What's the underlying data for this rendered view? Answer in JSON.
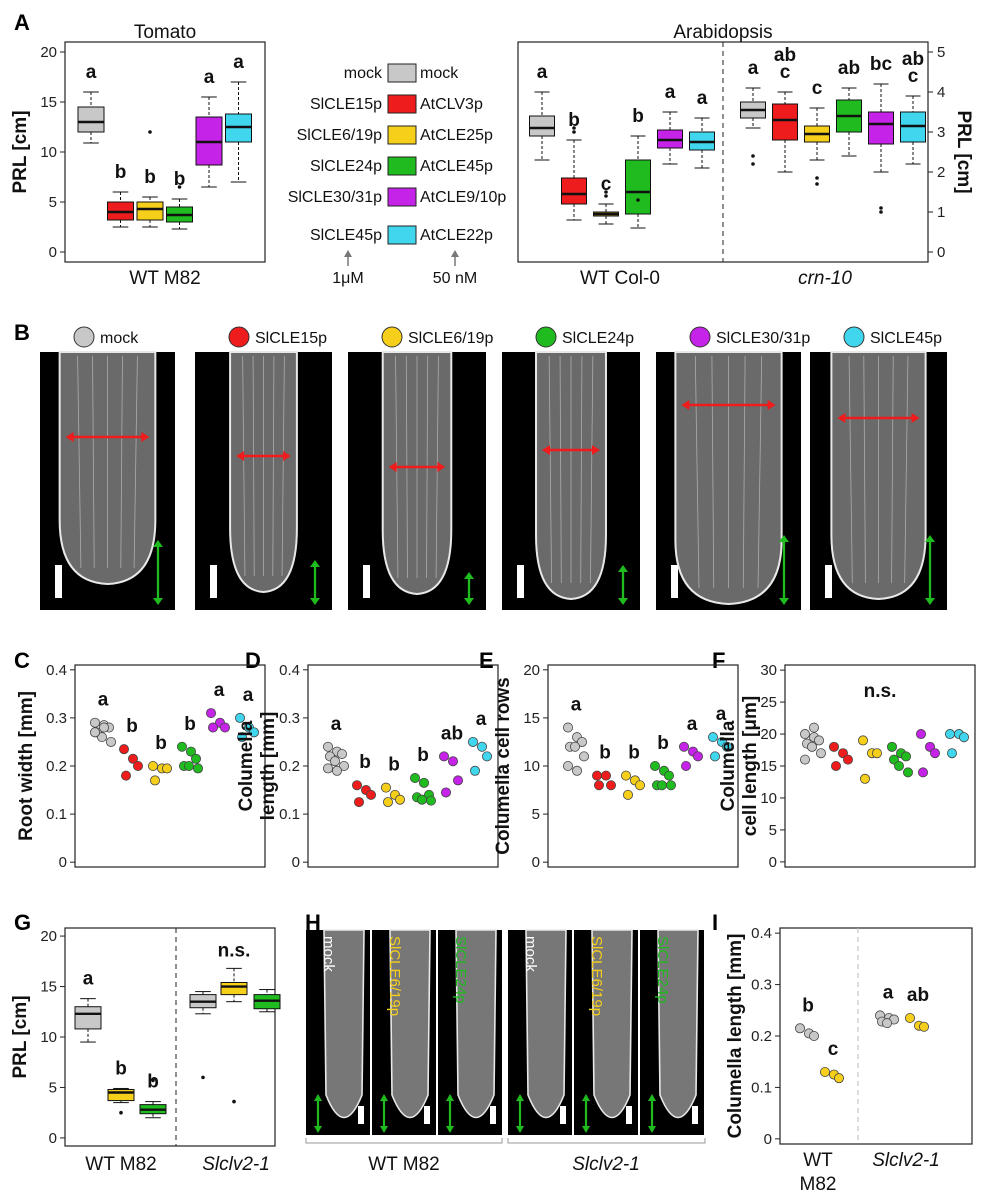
{
  "colors": {
    "mock": "#c8c8c8",
    "c15": "#ee1c1c",
    "c6": "#f6cf1b",
    "c24": "#1fbb1f",
    "c30": "#c523e8",
    "c45": "#3fd6ee"
  },
  "panel_labels": [
    "A",
    "B",
    "C",
    "D",
    "E",
    "F",
    "G",
    "H",
    "I"
  ],
  "legend": {
    "tomato": [
      "mock",
      "SlCLE15p",
      "SlCLE6/19p",
      "SlCLE24p",
      "SlCLE30/31p",
      "SlCLE45p"
    ],
    "arabidopsis": [
      "mock",
      "AtCLV3p",
      "AtCLE25p",
      "AtCLE45p",
      "AtCLE9/10p",
      "AtCLE22p"
    ],
    "conc_tomato": "1μM",
    "conc_arab": "50 nM"
  },
  "panel_b_labels": [
    "mock",
    "SlCLE15p",
    "SlCLE6/19p",
    "SlCLE24p",
    "SlCLE30/31p",
    "SlCLE45p"
  ],
  "panel_h": {
    "labels": [
      "mock",
      "SlCLE6/19p",
      "SlCLE24p",
      "mock",
      "SlCLE6/19p",
      "SlCLE24p"
    ],
    "groups": [
      "WT M82",
      "Slclv2-1"
    ]
  },
  "chart_data": [
    {
      "id": "A-tomato",
      "type": "box",
      "title": "Tomato",
      "ylabel": "PRL [cm]",
      "xlabel": "WT M82",
      "ylim": [
        -1,
        21
      ],
      "yticks": [
        0,
        5,
        10,
        15,
        20
      ],
      "categories": [
        "mock",
        "SlCLE15p",
        "SlCLE6/19p",
        "SlCLE24p",
        "SlCLE30/31p",
        "SlCLE45p"
      ],
      "boxes": [
        {
          "lo": 10.9,
          "q1": 12,
          "med": 13,
          "q3": 14.5,
          "hi": 16,
          "out": [],
          "sig": "a"
        },
        {
          "lo": 2.5,
          "q1": 3.2,
          "med": 4,
          "q3": 5,
          "hi": 6,
          "out": [],
          "sig": "b"
        },
        {
          "lo": 2.5,
          "q1": 3.2,
          "med": 4.3,
          "q3": 5,
          "hi": 5.5,
          "out": [
            12
          ],
          "sig": "b"
        },
        {
          "lo": 2.3,
          "q1": 3,
          "med": 3.7,
          "q3": 4.5,
          "hi": 5.3,
          "out": [
            6.5
          ],
          "sig": "b"
        },
        {
          "lo": 6.5,
          "q1": 8.7,
          "med": 11,
          "q3": 13.5,
          "hi": 15.5,
          "out": [],
          "sig": "a"
        },
        {
          "lo": 7,
          "q1": 11,
          "med": 12.5,
          "q3": 13.8,
          "hi": 17,
          "out": [],
          "sig": "a"
        }
      ]
    },
    {
      "id": "A-arabidopsis",
      "type": "box",
      "title": "Arabidopsis",
      "ylabel": "PRL [cm]",
      "ylim": [
        -0.25,
        5.25
      ],
      "yticks": [
        0,
        1,
        2,
        3,
        4,
        5
      ],
      "groups": [
        "WT Col-0",
        "crn-10"
      ],
      "categories": [
        "mock",
        "AtCLV3p",
        "AtCLE25p",
        "AtCLE45p",
        "AtCLE9/10p",
        "AtCLE22p"
      ],
      "boxes_wt": [
        {
          "lo": 2.3,
          "q1": 2.9,
          "med": 3.1,
          "q3": 3.4,
          "hi": 4,
          "out": [],
          "sig": "a"
        },
        {
          "lo": 0.8,
          "q1": 1.2,
          "med": 1.45,
          "q3": 1.85,
          "hi": 2.8,
          "out": [
            3,
            3.1
          ],
          "sig": "b"
        },
        {
          "lo": 0.7,
          "q1": 0.9,
          "med": 0.95,
          "q3": 1,
          "hi": 1.2,
          "out": [
            1.4,
            1.5
          ],
          "sig": "c"
        },
        {
          "lo": 0.6,
          "q1": 0.95,
          "med": 1.5,
          "q3": 2.3,
          "hi": 2.9,
          "out": [
            1.3
          ],
          "sig": "b"
        },
        {
          "lo": 2.2,
          "q1": 2.6,
          "med": 2.8,
          "q3": 3.05,
          "hi": 3.5,
          "out": [],
          "sig": "a"
        },
        {
          "lo": 2.1,
          "q1": 2.55,
          "med": 2.75,
          "q3": 3,
          "hi": 3.35,
          "out": [],
          "sig": "a"
        }
      ],
      "boxes_crn": [
        {
          "lo": 3.1,
          "q1": 3.35,
          "med": 3.55,
          "q3": 3.75,
          "hi": 4.1,
          "out": [
            2.4,
            2.2
          ],
          "sig": "a"
        },
        {
          "lo": 2,
          "q1": 2.8,
          "med": 3.3,
          "q3": 3.7,
          "hi": 4,
          "out": [],
          "sig": "ab c"
        },
        {
          "lo": 2.3,
          "q1": 2.75,
          "med": 2.95,
          "q3": 3.15,
          "hi": 3.6,
          "out": [
            1.85,
            1.7
          ],
          "sig": "c"
        },
        {
          "lo": 2.4,
          "q1": 3,
          "med": 3.4,
          "q3": 3.8,
          "hi": 4.1,
          "out": [],
          "sig": "ab"
        },
        {
          "lo": 2,
          "q1": 2.7,
          "med": 3.2,
          "q3": 3.5,
          "hi": 4.2,
          "out": [
            1.1,
            1
          ],
          "sig": "bc"
        },
        {
          "lo": 2.2,
          "q1": 2.75,
          "med": 3.15,
          "q3": 3.5,
          "hi": 3.9,
          "out": [],
          "sig": "ab c"
        }
      ]
    },
    {
      "id": "C",
      "type": "scatter",
      "ylabel": "Root width [mm]",
      "ylim": [
        -0.01,
        0.41
      ],
      "yticks": [
        0,
        0.1,
        0.2,
        0.3,
        0.4
      ],
      "series": [
        {
          "values": [
            0.29,
            0.285,
            0.28,
            0.27,
            0.26,
            0.25,
            0.27,
            0.28
          ],
          "sig": "a"
        },
        {
          "values": [
            0.235,
            0.215,
            0.2,
            0.18
          ],
          "sig": "b"
        },
        {
          "values": [
            0.2,
            0.195,
            0.195,
            0.17
          ],
          "sig": "b"
        },
        {
          "values": [
            0.24,
            0.23,
            0.215,
            0.2,
            0.2,
            0.195
          ],
          "sig": "b"
        },
        {
          "values": [
            0.31,
            0.29,
            0.28,
            0.28
          ],
          "sig": "a"
        },
        {
          "values": [
            0.3,
            0.28,
            0.27,
            0.26
          ],
          "sig": "a"
        }
      ]
    },
    {
      "id": "D",
      "type": "scatter",
      "ylabel": "Columella length [mm]",
      "ylim": [
        -0.01,
        0.41
      ],
      "yticks": [
        0,
        0.1,
        0.2,
        0.3,
        0.4
      ],
      "series": [
        {
          "values": [
            0.24,
            0.23,
            0.225,
            0.22,
            0.21,
            0.2,
            0.195,
            0.19
          ],
          "sig": "a"
        },
        {
          "values": [
            0.16,
            0.15,
            0.14,
            0.125
          ],
          "sig": "b"
        },
        {
          "values": [
            0.155,
            0.14,
            0.13,
            0.125
          ],
          "sig": "b"
        },
        {
          "values": [
            0.175,
            0.165,
            0.14,
            0.135,
            0.13,
            0.128
          ],
          "sig": "b"
        },
        {
          "values": [
            0.22,
            0.21,
            0.17,
            0.145
          ],
          "sig": "ab"
        },
        {
          "values": [
            0.25,
            0.24,
            0.22,
            0.19
          ],
          "sig": "a"
        }
      ]
    },
    {
      "id": "E",
      "type": "scatter",
      "ylabel": "Columella cell rows",
      "ylim": [
        -0.5,
        20.5
      ],
      "yticks": [
        0,
        5,
        10,
        15,
        20
      ],
      "series": [
        {
          "values": [
            14,
            13,
            12.5,
            12,
            12,
            11,
            10,
            9.5
          ],
          "sig": "a"
        },
        {
          "values": [
            9,
            9,
            8,
            8
          ],
          "sig": "b"
        },
        {
          "values": [
            9,
            8.5,
            8,
            7
          ],
          "sig": "b"
        },
        {
          "values": [
            10,
            9.5,
            9,
            8,
            8,
            8
          ],
          "sig": "b"
        },
        {
          "values": [
            12,
            11.5,
            11,
            10
          ],
          "sig": "a"
        },
        {
          "values": [
            13,
            12.5,
            12,
            11
          ],
          " sig": "a",
          "sig": "a"
        }
      ]
    },
    {
      "id": "F",
      "type": "scatter",
      "ylabel": "Columella cell length [μm]",
      "ylim": [
        -0.8,
        30.8
      ],
      "yticks": [
        0,
        5,
        10,
        15,
        20,
        25,
        30
      ],
      "note": "n.s.",
      "series": [
        {
          "values": [
            20,
            19.5,
            19,
            18.5,
            18,
            17,
            16,
            21
          ]
        },
        {
          "values": [
            18,
            17,
            16,
            15
          ]
        },
        {
          "values": [
            19,
            17,
            17,
            13
          ]
        },
        {
          "values": [
            18,
            17,
            16.5,
            16,
            15,
            14
          ]
        },
        {
          "values": [
            20,
            18,
            17,
            14
          ]
        },
        {
          "values": [
            20,
            20,
            19.5,
            17
          ]
        }
      ]
    },
    {
      "id": "G",
      "type": "box",
      "ylabel": "PRL [cm]",
      "ylim": [
        -0.8,
        20.8
      ],
      "yticks": [
        0,
        5,
        10,
        15,
        20
      ],
      "groups": [
        "WT M82",
        "Slclv2-1"
      ],
      "note": "n.s.",
      "boxes": [
        {
          "lo": 9.5,
          "q1": 10.8,
          "med": 12.3,
          "q3": 13,
          "hi": 13.8,
          "out": [],
          "sig": "a",
          "color": "mock"
        },
        {
          "lo": 3.5,
          "q1": 3.7,
          "med": 4.5,
          "q3": 4.8,
          "hi": 4.9,
          "out": [
            2.5
          ],
          "sig": "b",
          "color": "c6"
        },
        {
          "lo": 2,
          "q1": 2.4,
          "med": 2.8,
          "q3": 3.3,
          "hi": 3.6,
          "out": [
            5.7
          ],
          "sig": "b",
          "color": "c24"
        },
        {
          "lo": 12.3,
          "q1": 12.9,
          "med": 13.5,
          "q3": 14.2,
          "hi": 14.5,
          "out": [
            6
          ],
          "sig": "",
          "color": "mock"
        },
        {
          "lo": 13.5,
          "q1": 14.2,
          "med": 15,
          "q3": 15.4,
          "hi": 16.8,
          "out": [
            3.6
          ],
          "sig": "",
          "color": "c6"
        },
        {
          "lo": 12.5,
          "q1": 12.8,
          "med": 13.6,
          "q3": 14.2,
          "hi": 14.7,
          "out": [],
          "sig": "",
          "color": "c24"
        }
      ]
    },
    {
      "id": "I",
      "type": "scatter",
      "ylabel": "Columella length [mm]",
      "ylim": [
        -0.01,
        0.41
      ],
      "yticks": [
        0,
        0.1,
        0.2,
        0.3,
        0.4
      ],
      "groups": [
        "WT M82",
        "Slclv2-1"
      ],
      "series": [
        {
          "values": [
            0.215,
            0.205,
            0.2
          ],
          "sig": "b",
          "color": "mock"
        },
        {
          "values": [
            0.13,
            0.125,
            0.118
          ],
          "sig": "c",
          "color": "c6"
        },
        {
          "values": [
            0.24,
            0.235,
            0.232,
            0.228,
            0.225
          ],
          "sig": "a",
          "color": "mock"
        },
        {
          "values": [
            0.235,
            0.22,
            0.218
          ],
          "sig": "ab",
          "color": "c6"
        }
      ]
    }
  ]
}
